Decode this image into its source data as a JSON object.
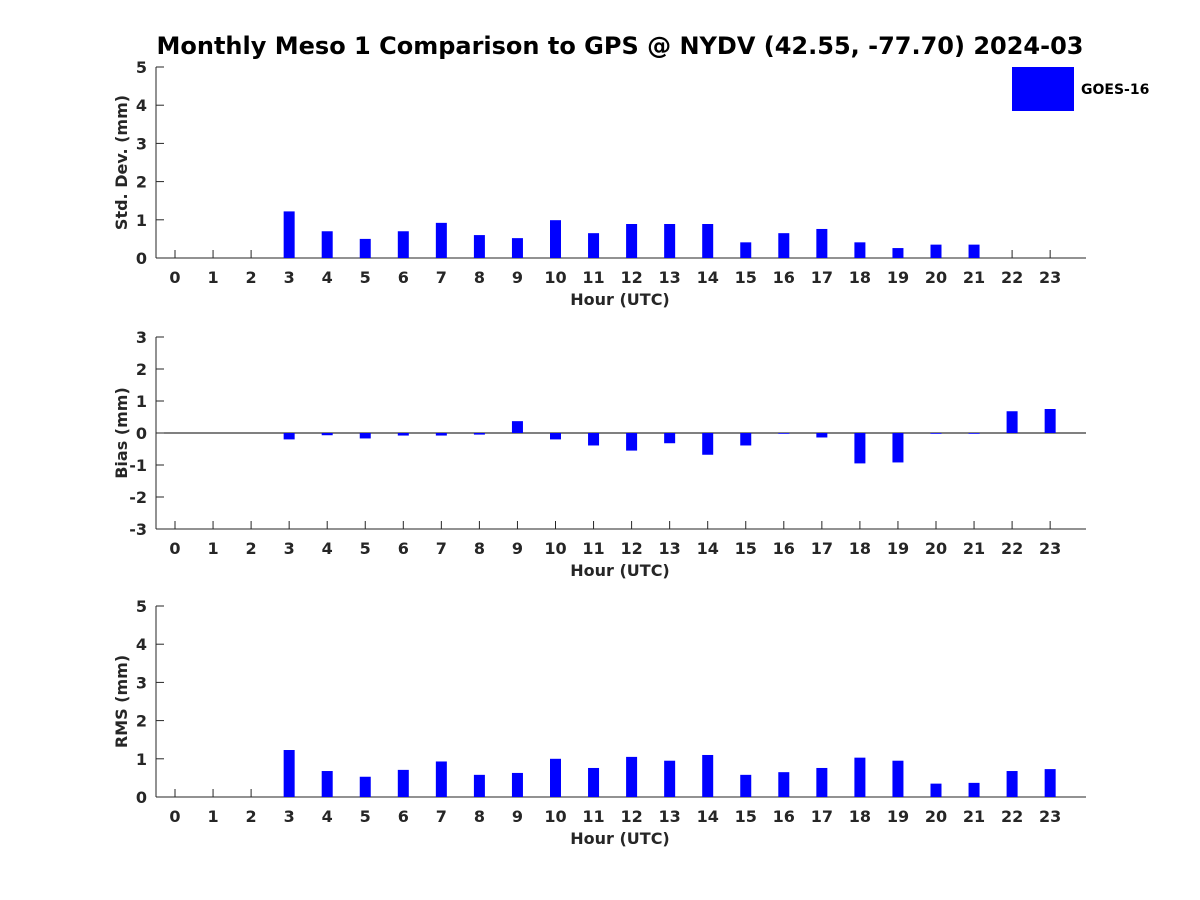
{
  "title": "Monthly Meso 1 Comparison to GPS @ NYDV (42.55, -77.70) 2024-03",
  "colors": {
    "bar": "#0000ff",
    "axis": "#262626",
    "text": "#000000"
  },
  "legend": {
    "label": "GOES-16",
    "placement": "top-right"
  },
  "chart_data": [
    {
      "type": "bar",
      "ylabel": "Std. Dev. (mm)",
      "xlabel": "Hour (UTC)",
      "ylim": [
        0,
        5
      ],
      "yticks": [
        0,
        1,
        2,
        3,
        4,
        5
      ],
      "categories": [
        "0",
        "1",
        "2",
        "3",
        "4",
        "5",
        "6",
        "7",
        "8",
        "9",
        "10",
        "11",
        "12",
        "13",
        "14",
        "15",
        "16",
        "17",
        "18",
        "19",
        "20",
        "21",
        "22",
        "23"
      ],
      "series": [
        {
          "name": "GOES-16",
          "values": [
            null,
            null,
            null,
            1.22,
            0.7,
            0.5,
            0.7,
            0.92,
            0.6,
            0.52,
            0.99,
            0.65,
            0.89,
            0.89,
            0.89,
            0.41,
            0.65,
            0.76,
            0.41,
            0.26,
            0.35,
            0.35,
            null,
            null
          ]
        }
      ]
    },
    {
      "type": "bar",
      "ylabel": "Bias (mm)",
      "xlabel": "Hour (UTC)",
      "ylim": [
        -3,
        3
      ],
      "yticks": [
        -3,
        -2,
        -1,
        0,
        1,
        2,
        3
      ],
      "categories": [
        "0",
        "1",
        "2",
        "3",
        "4",
        "5",
        "6",
        "7",
        "8",
        "9",
        "10",
        "11",
        "12",
        "13",
        "14",
        "15",
        "16",
        "17",
        "18",
        "19",
        "20",
        "21",
        "22",
        "23"
      ],
      "series": [
        {
          "name": "GOES-16",
          "values": [
            null,
            null,
            null,
            -0.2,
            -0.07,
            -0.17,
            -0.08,
            -0.08,
            -0.05,
            0.37,
            -0.2,
            -0.39,
            -0.55,
            -0.32,
            -0.68,
            -0.39,
            -0.02,
            -0.14,
            -0.95,
            -0.92,
            0.0,
            -0.02,
            0.68,
            0.75
          ]
        }
      ]
    },
    {
      "type": "bar",
      "ylabel": "RMS (mm)",
      "xlabel": "Hour (UTC)",
      "ylim": [
        0,
        5
      ],
      "yticks": [
        0,
        1,
        2,
        3,
        4,
        5
      ],
      "categories": [
        "0",
        "1",
        "2",
        "3",
        "4",
        "5",
        "6",
        "7",
        "8",
        "9",
        "10",
        "11",
        "12",
        "13",
        "14",
        "15",
        "16",
        "17",
        "18",
        "19",
        "20",
        "21",
        "22",
        "23"
      ],
      "series": [
        {
          "name": "GOES-16",
          "values": [
            null,
            null,
            null,
            1.23,
            0.68,
            0.53,
            0.71,
            0.93,
            0.58,
            0.63,
            1.0,
            0.76,
            1.05,
            0.95,
            1.1,
            0.58,
            0.65,
            0.76,
            1.03,
            0.95,
            0.35,
            0.37,
            0.68,
            0.73
          ]
        }
      ]
    }
  ]
}
